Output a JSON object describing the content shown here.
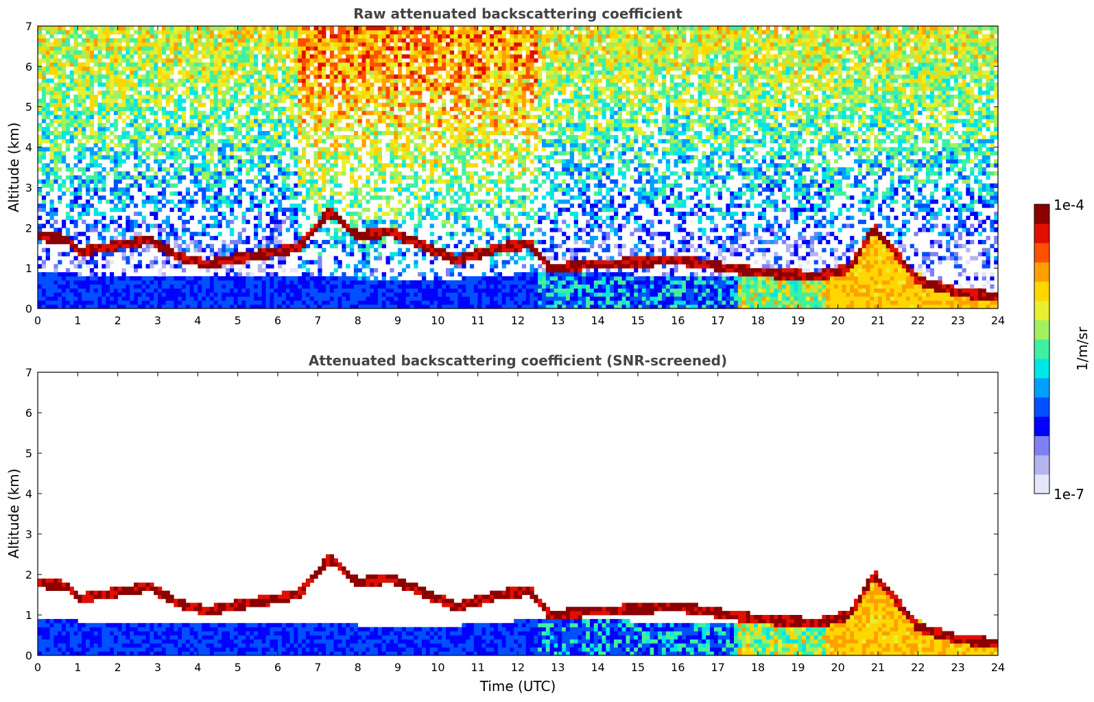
{
  "chart_data": [
    {
      "type": "heatmap",
      "title": "Raw attenuated backscattering coefficient",
      "xlabel": "",
      "ylabel": "Altitude (km)",
      "xlim": [
        0,
        24
      ],
      "ylim": [
        0,
        7
      ],
      "xticks": [
        "0",
        "1",
        "2",
        "3",
        "4",
        "5",
        "6",
        "7",
        "8",
        "9",
        "10",
        "11",
        "12",
        "13",
        "14",
        "15",
        "16",
        "17",
        "18",
        "19",
        "20",
        "21",
        "22",
        "23",
        "24"
      ],
      "yticks": [
        "0",
        "1",
        "2",
        "3",
        "4",
        "5",
        "6",
        "7"
      ],
      "features": {
        "noise_level_by_altitude": [
          [
            0,
            0.05
          ],
          [
            1,
            0.15
          ],
          [
            2,
            0.3
          ],
          [
            3,
            0.4
          ],
          [
            4,
            0.48
          ],
          [
            5,
            0.55
          ],
          [
            6,
            0.6
          ],
          [
            7,
            0.64
          ]
        ],
        "high_noise_hours": [
          [
            6.5,
            12.5
          ]
        ],
        "cloud_base_km": [
          [
            0,
            1.8
          ],
          [
            0.8,
            1.7
          ],
          [
            1.0,
            1.4
          ],
          [
            2.8,
            1.7
          ],
          [
            3.5,
            1.3
          ],
          [
            4.2,
            1.1
          ],
          [
            6.5,
            1.5
          ],
          [
            7.3,
            2.4
          ],
          [
            8.0,
            1.8
          ],
          [
            8.8,
            1.9
          ],
          [
            10.5,
            1.2
          ],
          [
            11.5,
            1.5
          ],
          [
            12.3,
            1.6
          ],
          [
            12.8,
            1.0
          ],
          [
            14.0,
            1.1
          ],
          [
            16.0,
            1.2
          ],
          [
            18.0,
            0.9
          ],
          [
            19.5,
            0.8
          ],
          [
            20.3,
            1.0
          ],
          [
            20.9,
            2.0
          ],
          [
            21.5,
            1.3
          ],
          [
            22.0,
            0.7
          ],
          [
            23.0,
            0.4
          ],
          [
            24.0,
            0.3
          ]
        ],
        "boundary_layer_top_km": [
          [
            0,
            0.9
          ],
          [
            2.0,
            0.8
          ],
          [
            6.0,
            0.8
          ],
          [
            10.0,
            0.7
          ],
          [
            12.5,
            0.9
          ],
          [
            17.0,
            0.8
          ],
          [
            19.7,
            0.8
          ],
          [
            21.5,
            1.2
          ],
          [
            22.5,
            0.6
          ],
          [
            24.0,
            0.3
          ]
        ]
      }
    },
    {
      "type": "heatmap",
      "title": "Attenuated backscattering coefficient (SNR-screened)",
      "xlabel": "Time (UTC)",
      "ylabel": "Altitude (km)",
      "xlim": [
        0,
        24
      ],
      "ylim": [
        0,
        7
      ],
      "xticks": [
        "0",
        "1",
        "2",
        "3",
        "4",
        "5",
        "6",
        "7",
        "8",
        "9",
        "10",
        "11",
        "12",
        "13",
        "14",
        "15",
        "16",
        "17",
        "18",
        "19",
        "20",
        "21",
        "22",
        "23",
        "24"
      ],
      "yticks": [
        "0",
        "1",
        "2",
        "3",
        "4",
        "5",
        "6",
        "7"
      ]
    }
  ],
  "colorbar": {
    "label": "1/m/sr",
    "max_label": "1e-4",
    "min_label": "1e-7",
    "colors": [
      "#e6e6fa",
      "#b4b4f0",
      "#8080f5",
      "#0000ff",
      "#0050ff",
      "#00a0ff",
      "#00e6e6",
      "#40f0a0",
      "#a0f060",
      "#e6f030",
      "#ffd700",
      "#ffa000",
      "#ff5000",
      "#e01000",
      "#8b0000"
    ]
  }
}
